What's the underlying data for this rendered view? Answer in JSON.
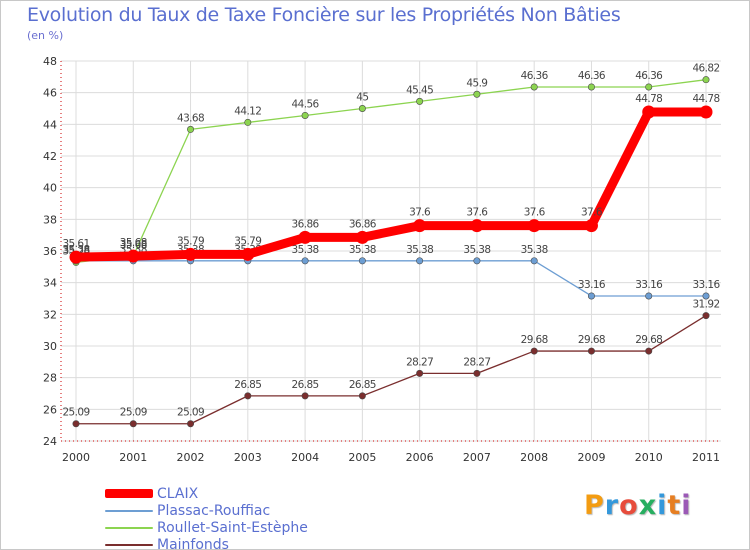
{
  "chart_data": {
    "type": "line",
    "title": "Evolution du Taux de Taxe Foncière sur les Propriétés Non Bâties",
    "unit_label": "(en %)",
    "xlabel": "",
    "ylabel": "(en %)",
    "x": [
      "2000",
      "2001",
      "2002",
      "2003",
      "2004",
      "2005",
      "2006",
      "2007",
      "2008",
      "2009",
      "2010",
      "2011"
    ],
    "ylim": [
      24,
      48
    ],
    "yticks": [
      24,
      26,
      28,
      30,
      32,
      34,
      36,
      38,
      40,
      42,
      44,
      46,
      48
    ],
    "grid": true,
    "legend_position": "bottom-left",
    "series": [
      {
        "name": "CLAIX",
        "color": "#ff0000",
        "values": [
          35.61,
          35.68,
          35.79,
          35.79,
          36.86,
          36.86,
          37.6,
          37.6,
          37.6,
          37.6,
          44.78,
          44.78
        ],
        "labels": [
          "35.61",
          "35.68",
          "35.79",
          "35.79",
          "36.86",
          "36.86",
          "37.6",
          "37.6",
          "37.6",
          "37.6",
          "44.78",
          "44.78"
        ]
      },
      {
        "name": "Plassac-Rouffiac",
        "color": "#6d9ed3",
        "values": [
          35.38,
          35.38,
          35.38,
          35.38,
          35.38,
          35.38,
          35.38,
          35.38,
          35.38,
          33.16,
          33.16,
          33.16
        ],
        "labels": [
          "35.38",
          "35.38",
          "35.38",
          "35.38",
          "35.38",
          "35.38",
          "35.38",
          "35.38",
          "35.38",
          "33.16",
          "33.16",
          "33.16"
        ]
      },
      {
        "name": "Roullet-Saint-Estèphe",
        "color": "#8cd450",
        "values": [
          35.28,
          35.68,
          43.68,
          44.12,
          44.56,
          45,
          45.45,
          45.9,
          46.36,
          46.36,
          46.36,
          46.82
        ],
        "labels": [
          "35.28",
          "35.68",
          "43.68",
          "44.12",
          "44.56",
          "45",
          "45.45",
          "45.9",
          "46.36",
          "46.36",
          "46.36",
          "46.82"
        ]
      },
      {
        "name": "Mainfonds",
        "color": "#7a2e2e",
        "values": [
          25.09,
          25.09,
          25.09,
          26.85,
          26.85,
          26.85,
          28.27,
          28.27,
          29.68,
          29.68,
          29.68,
          31.92
        ],
        "labels": [
          "25.09",
          "25.09",
          "25.09",
          "26.85",
          "26.85",
          "26.85",
          "28.27",
          "28.27",
          "29.68",
          "29.68",
          "29.68",
          "31.92"
        ]
      }
    ]
  },
  "brand": {
    "letters": [
      "P",
      "r",
      "o",
      "x",
      "i",
      "t",
      "i"
    ],
    "colors": [
      "#f39c12",
      "#3498db",
      "#e74c3c",
      "#27ae60",
      "#3498db",
      "#e67e22",
      "#9b59b6"
    ]
  }
}
